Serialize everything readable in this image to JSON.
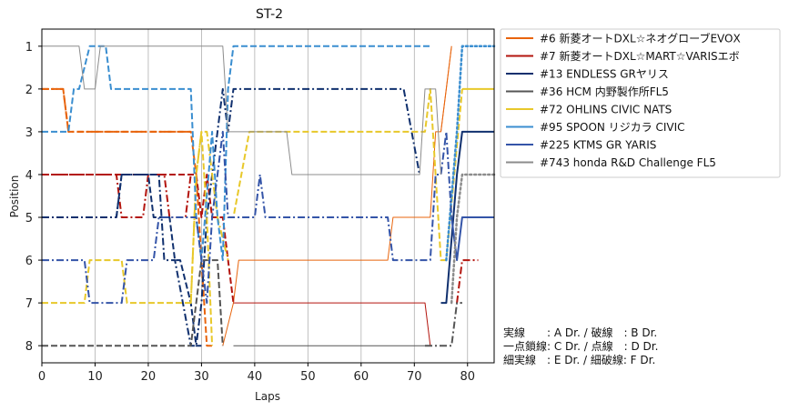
{
  "chart_data": {
    "type": "line",
    "title": "ST-2",
    "xlabel": "Laps",
    "ylabel": "Position",
    "xlim": [
      0,
      85
    ],
    "ylim": [
      8.4,
      0.6
    ],
    "y_inverted": true,
    "x_ticks": [
      0,
      10,
      20,
      30,
      40,
      50,
      60,
      70,
      80
    ],
    "y_ticks": [
      1,
      2,
      3,
      4,
      5,
      6,
      7,
      8
    ],
    "grid": "x-vertical",
    "legend_position": "outside-right-top",
    "series": [
      {
        "name": "#6 新菱オートDXL☆ネオグローブEVOⅩ",
        "color": "#e8640c",
        "segments": [
          {
            "style": "dashed",
            "width": 2,
            "points": [
              [
                0,
                2
              ],
              [
                4,
                2
              ],
              [
                5,
                3
              ],
              [
                28,
                3
              ],
              [
                29,
                4
              ],
              [
                30,
                6
              ],
              [
                31,
                8
              ],
              [
                32,
                8
              ]
            ]
          },
          {
            "style": "dashdot",
            "width": 2,
            "points": [
              [
                0,
                2
              ],
              [
                4,
                2
              ],
              [
                5,
                3
              ],
              [
                28,
                3
              ]
            ]
          },
          {
            "style": "thin",
            "width": 1,
            "points": [
              [
                34,
                8
              ],
              [
                36,
                7
              ],
              [
                37,
                6
              ],
              [
                65,
                6
              ],
              [
                66,
                5
              ],
              [
                73,
                5
              ],
              [
                74,
                3
              ],
              [
                75,
                3
              ],
              [
                77,
                1
              ]
            ]
          },
          {
            "style": "thin",
            "width": 1,
            "points": [
              [
                75,
                3
              ],
              [
                76,
                2
              ],
              [
                77,
                1
              ]
            ]
          }
        ]
      },
      {
        "name": "#7 新菱オートDXL☆MART☆VARISエボ",
        "color": "#b3140d",
        "segments": [
          {
            "style": "dashed",
            "width": 2,
            "points": [
              [
                0,
                4
              ],
              [
                29,
                4
              ],
              [
                30,
                5
              ],
              [
                31,
                4
              ],
              [
                32,
                5
              ],
              [
                34,
                5
              ],
              [
                35,
                6
              ],
              [
                36,
                7
              ]
            ]
          },
          {
            "style": "dashdot",
            "width": 2,
            "points": [
              [
                0,
                4
              ],
              [
                14,
                4
              ],
              [
                15,
                5
              ],
              [
                19,
                5
              ],
              [
                20,
                4
              ],
              [
                23,
                4
              ],
              [
                24,
                5
              ],
              [
                27,
                5
              ],
              [
                28,
                4
              ],
              [
                29,
                4
              ]
            ]
          },
          {
            "style": "thin",
            "width": 1,
            "points": [
              [
                36,
                7
              ],
              [
                37,
                7
              ],
              [
                72,
                7
              ],
              [
                73,
                8
              ]
            ]
          },
          {
            "style": "dashdot",
            "width": 2,
            "points": [
              [
                78,
                7
              ],
              [
                79,
                6
              ],
              [
                82,
                6
              ]
            ]
          }
        ]
      },
      {
        "name": "#13 ENDLESS GRヤリス",
        "color": "#10306e",
        "segments": [
          {
            "style": "dashdot",
            "width": 2,
            "points": [
              [
                0,
                5
              ],
              [
                14,
                5
              ],
              [
                15,
                4
              ],
              [
                22,
                4
              ],
              [
                23,
                6
              ],
              [
                25,
                6
              ],
              [
                28,
                8
              ],
              [
                29,
                8
              ],
              [
                30,
                7
              ],
              [
                31,
                5
              ],
              [
                32,
                4
              ],
              [
                33,
                3
              ],
              [
                34,
                2
              ],
              [
                35,
                3
              ],
              [
                36,
                2
              ],
              [
                68,
                2
              ],
              [
                71,
                4
              ]
            ]
          },
          {
            "style": "dashed",
            "width": 2,
            "points": [
              [
                14,
                5
              ],
              [
                15,
                4
              ],
              [
                20,
                4
              ],
              [
                21,
                5
              ],
              [
                24,
                5
              ],
              [
                25,
                6
              ],
              [
                26,
                6
              ],
              [
                28,
                7
              ],
              [
                29,
                8
              ],
              [
                30,
                8
              ]
            ]
          },
          {
            "style": "solid",
            "width": 2,
            "points": [
              [
                75,
                7
              ],
              [
                76,
                7
              ],
              [
                78,
                4
              ],
              [
                79,
                3
              ],
              [
                85,
                3
              ]
            ]
          }
        ]
      },
      {
        "name": "#36 HCM 内野製作所FL5",
        "color": "#555555",
        "segments": [
          {
            "style": "dashed",
            "width": 2,
            "points": [
              [
                0,
                8
              ],
              [
                28,
                8
              ],
              [
                29,
                7
              ],
              [
                30,
                6
              ],
              [
                31,
                6
              ],
              [
                33,
                6
              ],
              [
                34,
                8
              ]
            ]
          },
          {
            "style": "thin",
            "width": 1,
            "points": [
              [
                36,
                8
              ],
              [
                72,
                8
              ]
            ]
          },
          {
            "style": "dashdot",
            "width": 2,
            "points": [
              [
                72,
                8
              ],
              [
                77,
                8
              ],
              [
                78,
                7
              ],
              [
                79,
                7
              ]
            ]
          }
        ]
      },
      {
        "name": "#72 OHLINS CIVIC NATS",
        "color": "#e8c82a",
        "segments": [
          {
            "style": "dashed",
            "width": 2,
            "points": [
              [
                0,
                7
              ],
              [
                8,
                7
              ],
              [
                9,
                6
              ],
              [
                15,
                6
              ],
              [
                16,
                7
              ],
              [
                28,
                7
              ],
              [
                29,
                4
              ],
              [
                30,
                3
              ],
              [
                31,
                5
              ],
              [
                32,
                8
              ]
            ]
          },
          {
            "style": "dashdot",
            "width": 2,
            "points": [
              [
                28,
                7
              ],
              [
                29,
                4
              ],
              [
                30,
                3
              ],
              [
                31,
                3
              ],
              [
                33,
                5
              ],
              [
                35,
                6
              ]
            ]
          },
          {
            "style": "dashed",
            "width": 2,
            "points": [
              [
                35,
                5
              ],
              [
                36,
                5
              ],
              [
                39,
                3
              ],
              [
                40,
                3
              ],
              [
                72,
                3
              ],
              [
                73,
                2
              ],
              [
                75,
                6
              ],
              [
                76,
                6
              ],
              [
                79,
                2
              ]
            ]
          },
          {
            "style": "solid",
            "width": 2,
            "points": [
              [
                79,
                2
              ],
              [
                85,
                2
              ]
            ]
          }
        ]
      },
      {
        "name": "#95 SPOON リジカラ CIVIC",
        "color": "#3a8ed0",
        "segments": [
          {
            "style": "dashed",
            "width": 2,
            "points": [
              [
                0,
                3
              ],
              [
                5,
                3
              ],
              [
                6,
                2
              ],
              [
                7,
                2
              ],
              [
                9,
                1
              ],
              [
                12,
                1
              ],
              [
                13,
                2
              ],
              [
                28,
                2
              ],
              [
                29,
                5
              ],
              [
                30,
                6
              ],
              [
                32,
                3
              ],
              [
                33,
                5
              ],
              [
                34,
                6
              ],
              [
                35,
                2
              ],
              [
                36,
                1
              ],
              [
                73,
                1
              ]
            ]
          },
          {
            "style": "dotted",
            "width": 2.5,
            "points": [
              [
                76,
                6
              ],
              [
                78,
                3
              ],
              [
                79,
                1
              ],
              [
                85,
                1
              ]
            ]
          }
        ]
      },
      {
        "name": "#225 KTMS GR YARIS",
        "color": "#3454a8",
        "segments": [
          {
            "style": "dashdot",
            "width": 2,
            "points": [
              [
                0,
                6
              ],
              [
                8,
                6
              ],
              [
                9,
                7
              ],
              [
                15,
                7
              ],
              [
                16,
                6
              ],
              [
                21,
                6
              ],
              [
                22,
                5
              ],
              [
                29,
                5
              ],
              [
                30,
                6
              ],
              [
                31,
                7
              ],
              [
                32,
                5
              ],
              [
                33,
                4
              ],
              [
                34,
                3
              ],
              [
                35,
                5
              ],
              [
                40,
                5
              ],
              [
                41,
                4
              ],
              [
                42,
                5
              ],
              [
                65,
                5
              ],
              [
                66,
                6
              ],
              [
                73,
                6
              ],
              [
                74,
                4
              ],
              [
                75,
                4
              ],
              [
                76,
                3
              ],
              [
                77,
                5
              ]
            ]
          },
          {
            "style": "solid",
            "width": 2,
            "points": [
              [
                77,
                5
              ],
              [
                78,
                6
              ],
              [
                79,
                5
              ],
              [
                85,
                5
              ]
            ]
          }
        ]
      },
      {
        "name": "#743 honda R&D Challenge FL5",
        "color": "#8c8c8c",
        "segments": [
          {
            "style": "thin",
            "width": 1,
            "points": [
              [
                0,
                1
              ],
              [
                7,
                1
              ],
              [
                8,
                2
              ],
              [
                10,
                2
              ],
              [
                11,
                1
              ],
              [
                34,
                1
              ],
              [
                35,
                3
              ],
              [
                46,
                3
              ],
              [
                47,
                4
              ],
              [
                71,
                4
              ],
              [
                72,
                2
              ],
              [
                74,
                2
              ],
              [
                75,
                4
              ]
            ]
          },
          {
            "style": "dotted",
            "width": 2.5,
            "points": [
              [
                77,
                7
              ],
              [
                78,
                5
              ],
              [
                79,
                4
              ],
              [
                85,
                4
              ]
            ]
          }
        ]
      }
    ],
    "legend_style_reference": "solid",
    "annotations": [
      "実線　　: A Dr. / 破線　: B Dr.",
      "一点鎖線: C Dr. / 点線　: D Dr.",
      "細実線　: E Dr. / 細破線: F Dr."
    ]
  }
}
